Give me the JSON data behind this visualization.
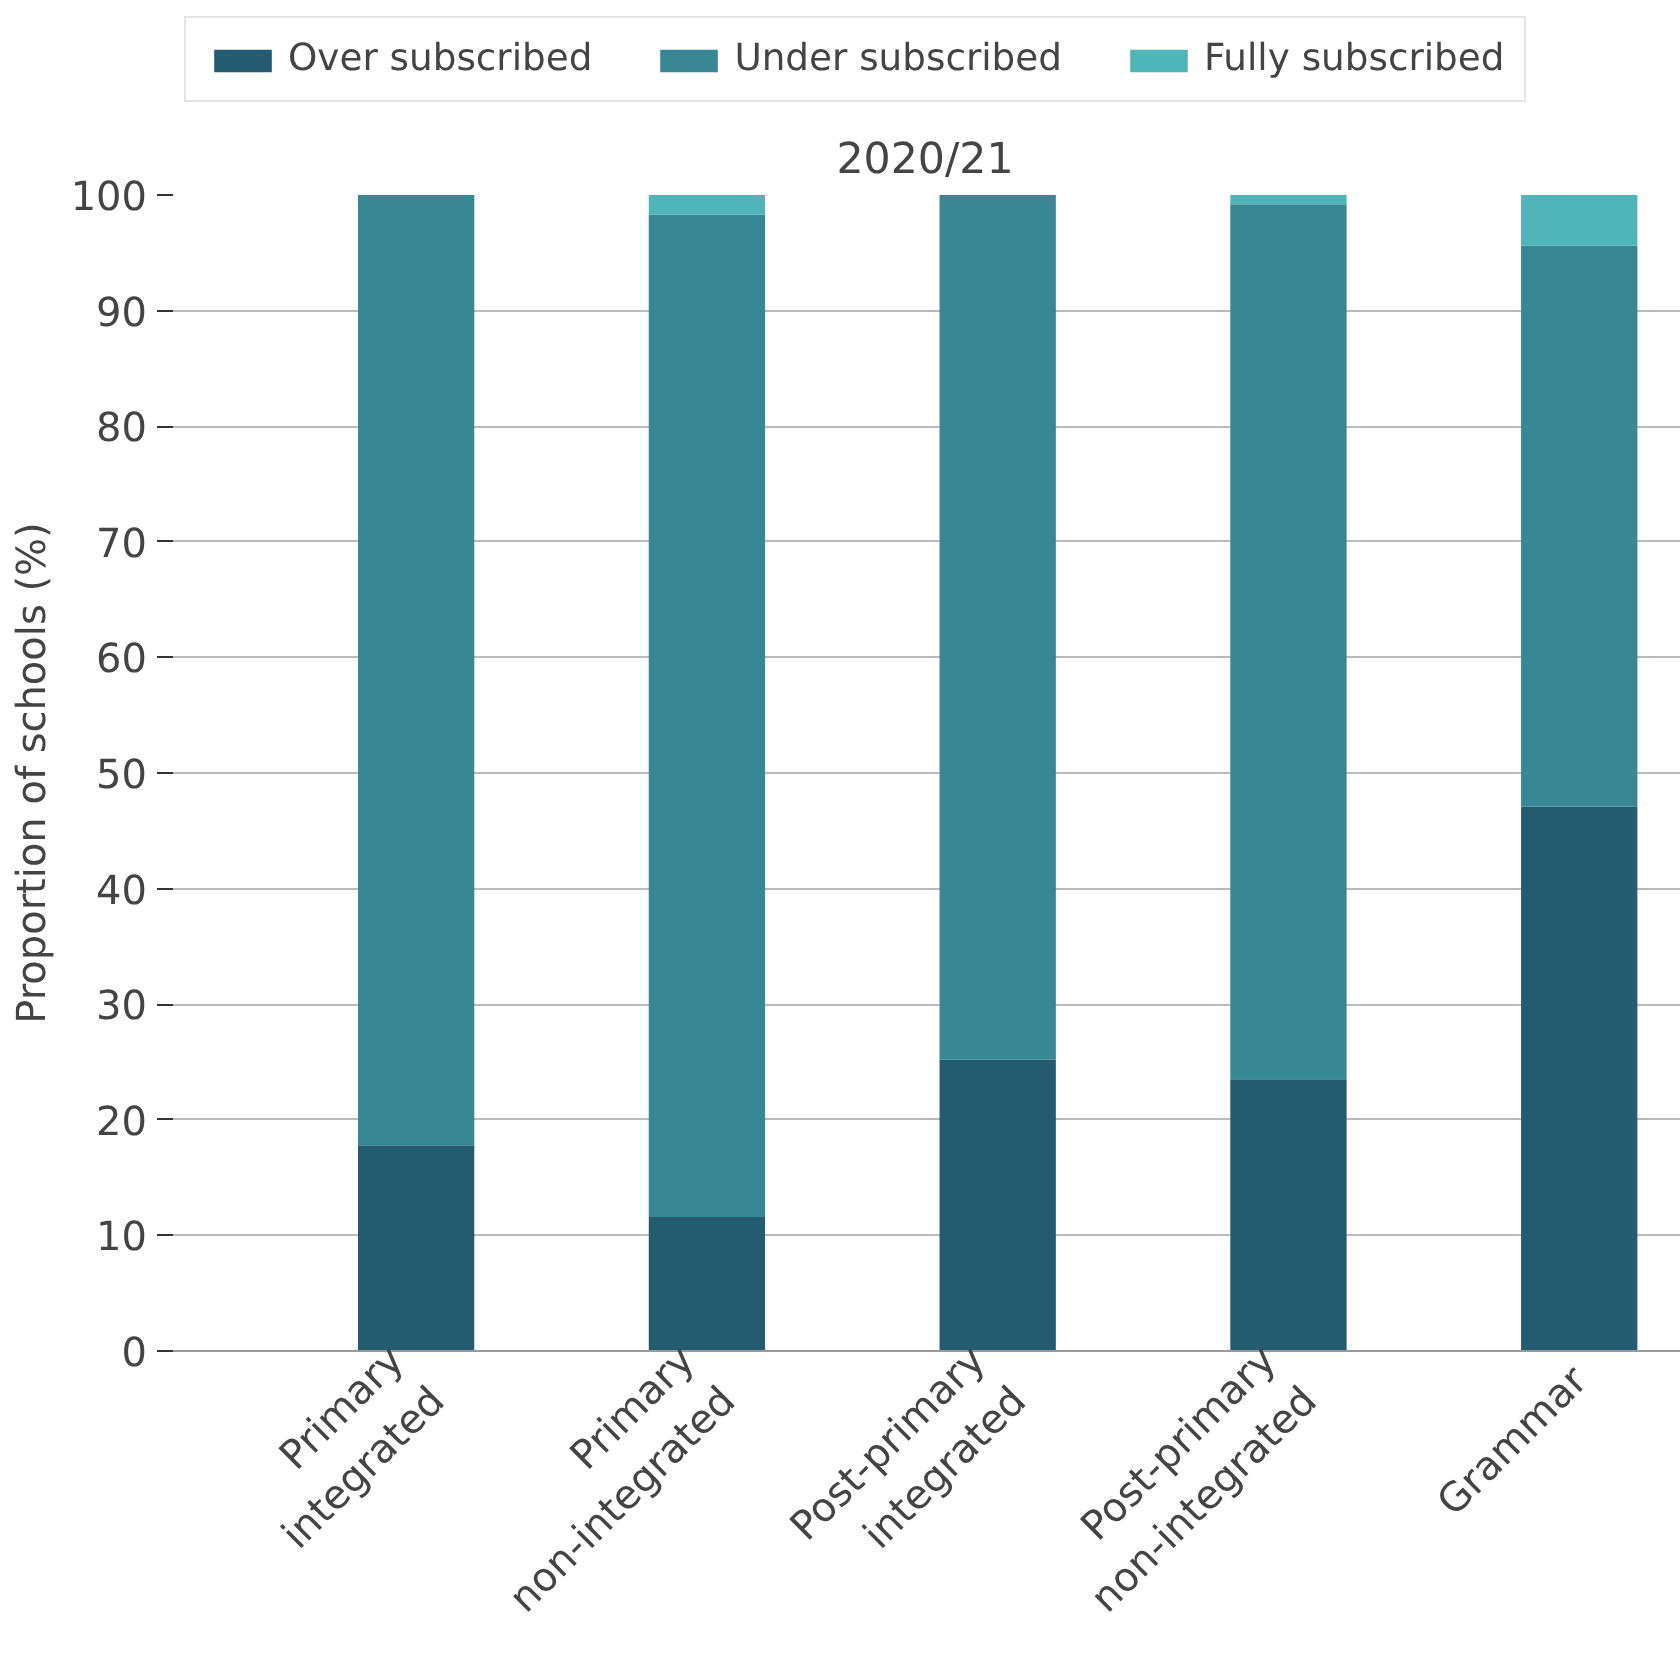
{
  "chart_data": {
    "type": "bar",
    "stacked": true,
    "title": "2020/21",
    "ylabel": "Proportion of schools (%)",
    "categories": [
      "Primary integrated",
      "Primary non-integrated",
      "Post-primary integrated",
      "Post-primary non-integrated",
      "Grammar"
    ],
    "series": [
      {
        "name": "Over subscribed",
        "color": "#235b70",
        "values": [
          17.8,
          11.6,
          25.2,
          23.5,
          47.1
        ]
      },
      {
        "name": "Under subscribed",
        "color": "#378794",
        "values": [
          82.2,
          86.7,
          74.8,
          75.7,
          48.5
        ]
      },
      {
        "name": "Fully subscribed",
        "color": "#4fb5b8",
        "values": [
          0,
          1.7,
          0,
          0.8,
          4.4
        ]
      }
    ],
    "ylim": [
      0,
      100
    ],
    "yticks": [
      0,
      10,
      20,
      30,
      40,
      50,
      60,
      70,
      80,
      90,
      100
    ],
    "grid": "y",
    "legend": "top"
  }
}
